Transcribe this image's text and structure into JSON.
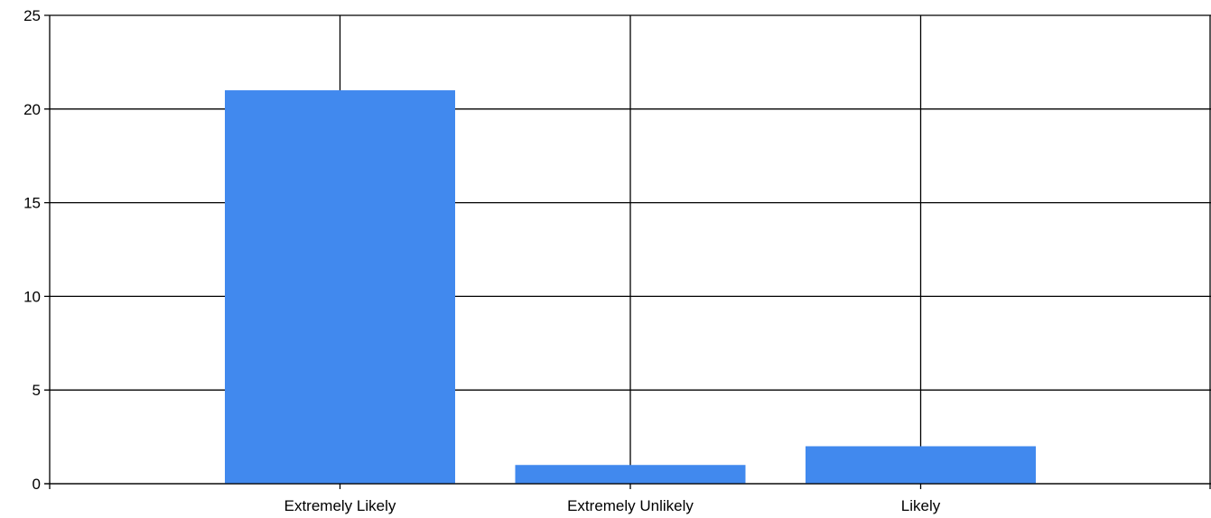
{
  "chart_data": {
    "type": "bar",
    "categories": [
      "Extremely Likely",
      "Extremely Unlikely",
      "Likely"
    ],
    "values": [
      21,
      1,
      2
    ],
    "ylim": [
      0,
      25
    ],
    "yticks": [
      "0",
      "5",
      "10",
      "15",
      "20",
      "25"
    ],
    "grid": true,
    "bar_color": "#4189EE",
    "title": "",
    "xlabel": "",
    "ylabel": ""
  }
}
